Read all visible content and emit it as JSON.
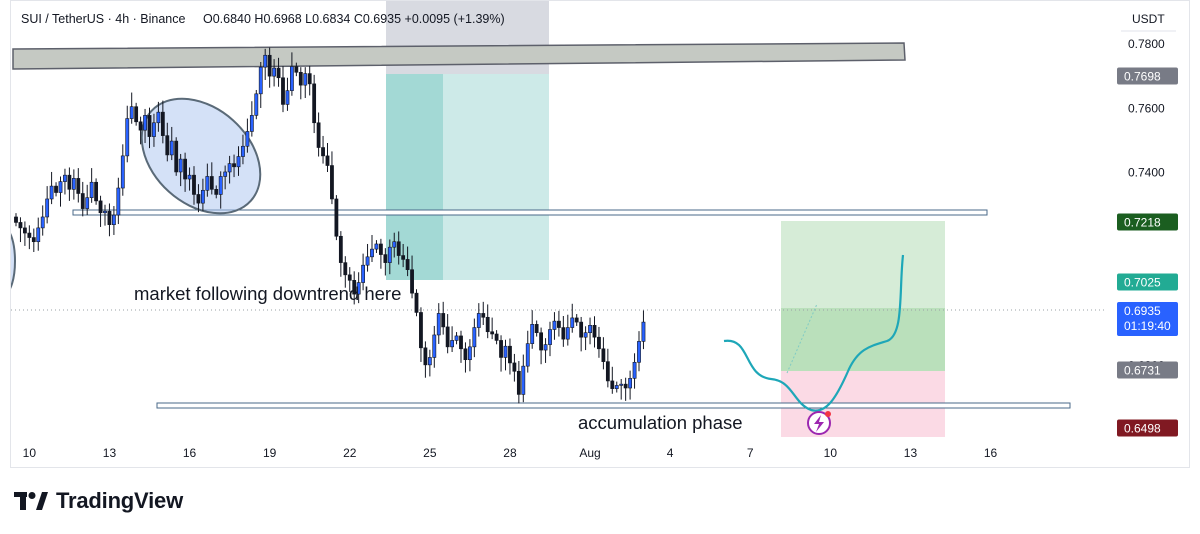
{
  "header": {
    "symbol": "SUI / TetherUS · 4h · Binance",
    "ohlc": "O0.6840 H0.6968 L0.6834 C0.6935 +0.0095 (+1.39%)"
  },
  "price_axis": {
    "currency": "USDT",
    "badges": [
      {
        "value": "0.7698",
        "color": "#787b86"
      },
      {
        "value": "0.7218",
        "color": "#1b5e20"
      },
      {
        "value": "0.7025",
        "color": "#22ab94"
      },
      {
        "value": "0.6935",
        "sub": "01:19:40",
        "color": "#2962ff"
      },
      {
        "value": "0.6731",
        "color": "#787b86"
      },
      {
        "value": "0.6498",
        "color": "#801922"
      }
    ]
  },
  "annotations": {
    "downtrend": "market following downtrend here",
    "accumulation": "accumulation phase"
  },
  "brand": {
    "name": "TradingView"
  },
  "chart_data": {
    "type": "candlestick",
    "y_ticks": [
      0.78,
      0.76,
      0.74,
      0.68,
      0.66
    ],
    "ylim": [
      0.6425,
      0.7875
    ],
    "x_ticks": [
      {
        "label": "10",
        "i": 3
      },
      {
        "label": "13",
        "i": 21
      },
      {
        "label": "16",
        "i": 39
      },
      {
        "label": "19",
        "i": 57
      },
      {
        "label": "22",
        "i": 75
      },
      {
        "label": "25",
        "i": 93
      },
      {
        "label": "28",
        "i": 111
      },
      {
        "label": "Aug",
        "i": 129
      },
      {
        "label": "4",
        "i": 147
      },
      {
        "label": "7",
        "i": 165
      },
      {
        "label": "10",
        "i": 183
      },
      {
        "label": "13",
        "i": 201
      },
      {
        "label": "16",
        "i": 219
      }
    ],
    "close": [
      0.7245,
      0.7228,
      0.7212,
      0.7198,
      0.7185,
      0.7228,
      0.7262,
      0.7318,
      0.7358,
      0.7338,
      0.7372,
      0.7392,
      0.7348,
      0.7382,
      0.7335,
      0.7288,
      0.7322,
      0.737,
      0.7312,
      0.7275,
      0.728,
      0.7238,
      0.7268,
      0.7352,
      0.7452,
      0.7568,
      0.7605,
      0.7558,
      0.7532,
      0.7578,
      0.7512,
      0.7555,
      0.7588,
      0.7515,
      0.7455,
      0.7498,
      0.7402,
      0.7442,
      0.738,
      0.7392,
      0.7332,
      0.7305,
      0.7345,
      0.7388,
      0.7348,
      0.7332,
      0.7388,
      0.7402,
      0.7428,
      0.7418,
      0.745,
      0.7482,
      0.7528,
      0.7578,
      0.7645,
      0.7728,
      0.7765,
      0.77,
      0.7725,
      0.7695,
      0.7612,
      0.7655,
      0.773,
      0.7712,
      0.7672,
      0.7708,
      0.7676,
      0.7555,
      0.7478,
      0.7452,
      0.7422,
      0.7318,
      0.7202,
      0.712,
      0.7082,
      0.7065,
      0.7022,
      0.7058,
      0.7112,
      0.7138,
      0.7162,
      0.7178,
      0.7145,
      0.712,
      0.7168,
      0.7185,
      0.7142,
      0.713,
      0.7098,
      0.7025,
      0.6965,
      0.6855,
      0.6802,
      0.6825,
      0.6895,
      0.6962,
      0.692,
      0.6858,
      0.6878,
      0.6892,
      0.6852,
      0.6818,
      0.6858,
      0.6918,
      0.6962,
      0.695,
      0.6905,
      0.6898,
      0.6878,
      0.6825,
      0.686,
      0.6808,
      0.6782,
      0.671,
      0.6798,
      0.6868,
      0.6928,
      0.6902,
      0.6848,
      0.6865,
      0.6912,
      0.6938,
      0.6918,
      0.6882,
      0.6918,
      0.6948,
      0.6935,
      0.6888,
      0.6902,
      0.6925,
      0.6888,
      0.6852,
      0.6812,
      0.6752,
      0.6728,
      0.6738,
      0.6742,
      0.673,
      0.676,
      0.681,
      0.6875,
      0.6935
    ],
    "notes": "Candle OHLC estimated from the screenshot; close series above. Price shown on right axis in USDT."
  }
}
